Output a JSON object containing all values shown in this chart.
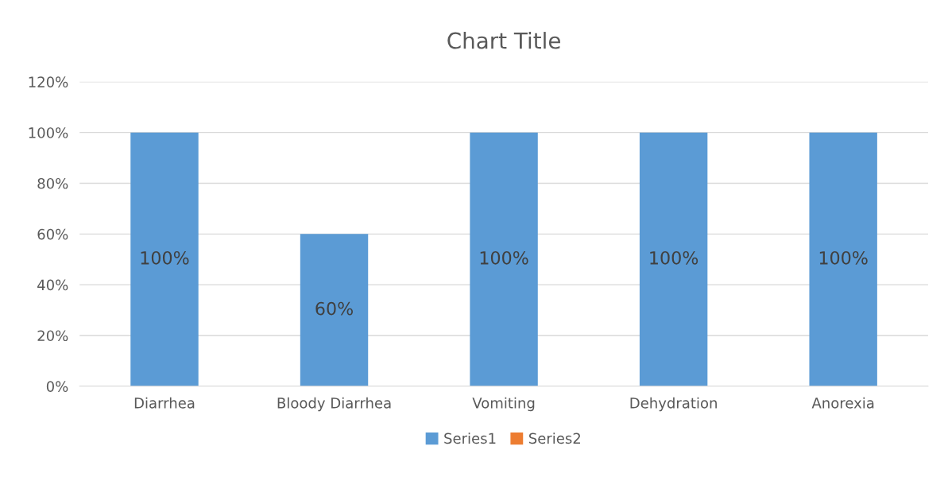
{
  "chart_data": {
    "type": "bar",
    "title": "Chart Title",
    "categories": [
      "Diarrhea",
      "Bloody Diarrhea",
      "Vomiting",
      "Dehydration",
      "Anorexia"
    ],
    "series": [
      {
        "name": "Series1",
        "color": "#5b9bd5",
        "values": [
          100,
          60,
          100,
          100,
          100
        ],
        "value_labels": [
          "100%",
          "60%",
          "100%",
          "100%",
          "100%"
        ]
      },
      {
        "name": "Series2",
        "color": "#ed7d31",
        "values": [
          null,
          null,
          null,
          null,
          null
        ]
      }
    ],
    "ylim": [
      0,
      120
    ],
    "yticks": [
      {
        "value": 0,
        "label": "0%"
      },
      {
        "value": 20,
        "label": "20%"
      },
      {
        "value": 40,
        "label": "40%"
      },
      {
        "value": 60,
        "label": "60%"
      },
      {
        "value": 80,
        "label": "80%"
      },
      {
        "value": 100,
        "label": "100%"
      },
      {
        "value": 120,
        "label": "120%"
      }
    ],
    "grid": "y",
    "legend": "bottom"
  }
}
